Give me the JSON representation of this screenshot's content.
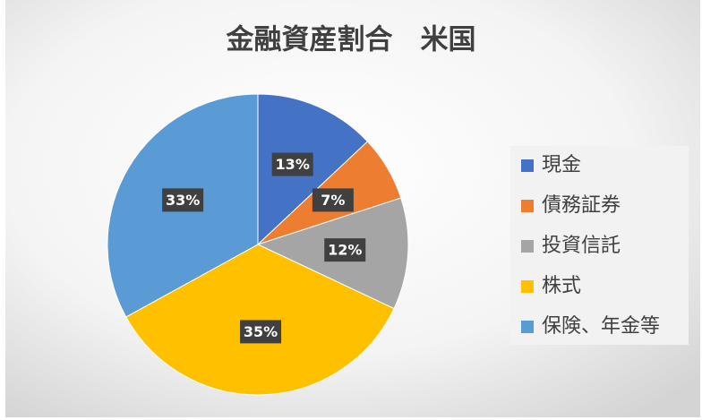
{
  "chart_data": {
    "type": "pie",
    "title": "金融資産割合　米国",
    "categories": [
      "現金",
      "債務証券",
      "投資信託",
      "株式",
      "保険、年金等"
    ],
    "values": [
      13,
      7,
      12,
      35,
      33
    ],
    "value_labels": [
      "13%",
      "7%",
      "12%",
      "35%",
      "33%"
    ],
    "colors": [
      "#4472c4",
      "#ed7d31",
      "#a5a5a5",
      "#ffc000",
      "#5b9bd5"
    ],
    "legend": "right"
  }
}
